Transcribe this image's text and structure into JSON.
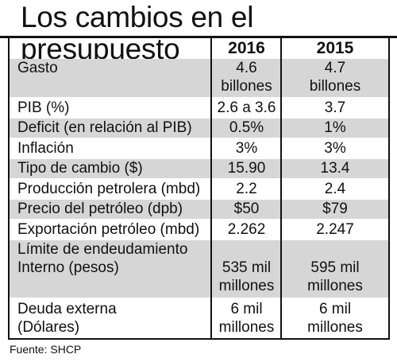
{
  "title": "Los cambios en el presupuesto",
  "columns": [
    "2016",
    "2015"
  ],
  "rows": [
    {
      "label": [
        "Gasto"
      ],
      "v2016": [
        "4.6",
        "billones"
      ],
      "v2015": [
        "4.7",
        "billones"
      ]
    },
    {
      "label": [
        "PIB (%)"
      ],
      "v2016": [
        "2.6 a 3.6"
      ],
      "v2015": [
        "3.7"
      ]
    },
    {
      "label": [
        "Deficit (en relación al PIB)"
      ],
      "v2016": [
        "0.5%"
      ],
      "v2015": [
        "1%"
      ]
    },
    {
      "label": [
        "Inflación"
      ],
      "v2016": [
        "3%"
      ],
      "v2015": [
        "3%"
      ]
    },
    {
      "label": [
        "Tipo de cambio ($)"
      ],
      "v2016": [
        "15.90"
      ],
      "v2015": [
        "13.4"
      ]
    },
    {
      "label": [
        "Producción petrolera (mbd)"
      ],
      "v2016": [
        "2.2"
      ],
      "v2015": [
        "2.4"
      ]
    },
    {
      "label": [
        "Precio del petróleo (dpb)"
      ],
      "v2016": [
        "$50"
      ],
      "v2015": [
        "$79"
      ]
    },
    {
      "label": [
        "Exportación petróleo (mbd)"
      ],
      "v2016": [
        "2.262"
      ],
      "v2015": [
        "2.247"
      ]
    },
    {
      "label": [
        "Límite de endeudamiento",
        "Interno (pesos)"
      ],
      "v2016": [
        "",
        "535 mil",
        "millones"
      ],
      "v2015": [
        "",
        "595 mil",
        "millones"
      ]
    },
    {
      "label": [
        "Deuda externa",
        "(Dólares)"
      ],
      "v2016": [
        "6 mil",
        "millones"
      ],
      "v2015": [
        "6 mil",
        "millones"
      ]
    }
  ],
  "source": "Fuente: SHCP"
}
